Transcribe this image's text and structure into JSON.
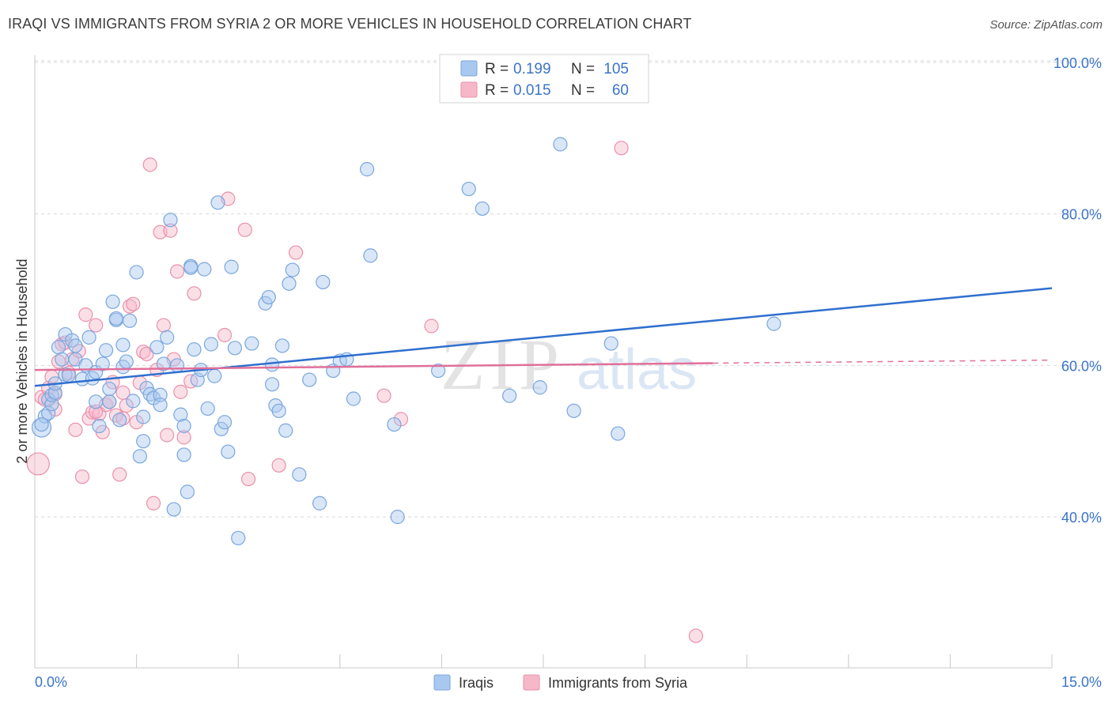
{
  "title": "IRAQI VS IMMIGRANTS FROM SYRIA 2 OR MORE VEHICLES IN HOUSEHOLD CORRELATION CHART",
  "source": "Source: ZipAtlas.com",
  "watermark": {
    "zip": "ZIP",
    "atlas": "atlas"
  },
  "colors": {
    "blue_fill": "#a9c8f0",
    "blue_stroke": "#7aa6dd",
    "blue_line": "#2f6fce",
    "pink_fill": "#f6b8c9",
    "pink_stroke": "#e890aa",
    "pink_line": "#e0709a",
    "tick_text": "#3b74c8",
    "grid": "#d9d9d9"
  },
  "legend": {
    "rows": [
      {
        "r_label": "R =",
        "r_value": "0.199",
        "n_label": "N =",
        "n_value": "105"
      },
      {
        "r_label": "R =",
        "r_value": "0.015",
        "n_label": "N =",
        "n_value": "60"
      }
    ]
  },
  "chart_data": {
    "type": "scatter",
    "title": "IRAQI VS IMMIGRANTS FROM SYRIA 2 OR MORE VEHICLES IN HOUSEHOLD CORRELATION CHART",
    "xlabel": "",
    "ylabel": "2 or more Vehicles in Household",
    "xlim": [
      0,
      15
    ],
    "ylim": [
      20,
      102
    ],
    "x_tick_labels": [
      "0.0%",
      "15.0%"
    ],
    "y_ticks": [
      40,
      60,
      80,
      100
    ],
    "y_tick_labels": [
      "40.0%",
      "60.0%",
      "80.0%",
      "100.0%"
    ],
    "grid": true,
    "legend_position": "top-center",
    "series": [
      {
        "name": "Iraqis",
        "color": "#a9c8f0",
        "trend": {
          "x": [
            0,
            15
          ],
          "y": [
            57.3,
            70.2
          ]
        },
        "points": [
          [
            0.1,
            51.8
          ],
          [
            0.15,
            53.3
          ],
          [
            0.2,
            55.5
          ],
          [
            0.2,
            53.7
          ],
          [
            0.25,
            54.9
          ],
          [
            0.25,
            56.1
          ],
          [
            0.3,
            56.4
          ],
          [
            0.35,
            62.4
          ],
          [
            0.4,
            60.8
          ],
          [
            0.45,
            58.8
          ],
          [
            0.45,
            64.1
          ],
          [
            0.5,
            58.7
          ],
          [
            0.55,
            63.3
          ],
          [
            0.6,
            60.8
          ],
          [
            0.6,
            62.6
          ],
          [
            0.7,
            58.2
          ],
          [
            0.75,
            60.0
          ],
          [
            0.8,
            63.7
          ],
          [
            0.85,
            58.3
          ],
          [
            0.9,
            59.1
          ],
          [
            0.9,
            55.2
          ],
          [
            0.95,
            52.0
          ],
          [
            1.0,
            60.2
          ],
          [
            1.05,
            62.0
          ],
          [
            1.1,
            56.9
          ],
          [
            1.1,
            55.2
          ],
          [
            1.15,
            68.4
          ],
          [
            1.2,
            66.0
          ],
          [
            1.25,
            52.8
          ],
          [
            1.3,
            62.7
          ],
          [
            1.3,
            59.8
          ],
          [
            1.35,
            60.5
          ],
          [
            1.4,
            65.9
          ],
          [
            1.45,
            55.3
          ],
          [
            1.5,
            72.3
          ],
          [
            1.55,
            48.0
          ],
          [
            1.6,
            50.0
          ],
          [
            1.6,
            53.2
          ],
          [
            1.65,
            57.0
          ],
          [
            1.7,
            56.2
          ],
          [
            1.75,
            55.7
          ],
          [
            1.8,
            62.4
          ],
          [
            1.85,
            56.1
          ],
          [
            1.85,
            54.8
          ],
          [
            1.9,
            60.2
          ],
          [
            1.95,
            63.7
          ],
          [
            2.0,
            79.2
          ],
          [
            2.05,
            41.0
          ],
          [
            2.1,
            60.0
          ],
          [
            2.15,
            53.5
          ],
          [
            2.2,
            52.0
          ],
          [
            2.2,
            48.2
          ],
          [
            2.25,
            43.3
          ],
          [
            2.3,
            73.1
          ],
          [
            2.35,
            62.1
          ],
          [
            2.4,
            58.1
          ],
          [
            2.45,
            59.4
          ],
          [
            2.5,
            72.7
          ],
          [
            2.55,
            54.3
          ],
          [
            2.6,
            62.8
          ],
          [
            2.65,
            58.6
          ],
          [
            2.7,
            81.5
          ],
          [
            2.75,
            51.6
          ],
          [
            2.8,
            52.5
          ],
          [
            2.85,
            48.6
          ],
          [
            2.9,
            73.0
          ],
          [
            2.95,
            62.3
          ],
          [
            3.0,
            37.2
          ],
          [
            3.2,
            62.9
          ],
          [
            3.4,
            68.2
          ],
          [
            3.45,
            69.0
          ],
          [
            3.5,
            60.1
          ],
          [
            3.5,
            57.5
          ],
          [
            3.55,
            54.7
          ],
          [
            3.6,
            54.0
          ],
          [
            3.65,
            62.6
          ],
          [
            3.7,
            51.4
          ],
          [
            3.75,
            70.8
          ],
          [
            3.8,
            72.6
          ],
          [
            3.9,
            45.6
          ],
          [
            4.05,
            58.1
          ],
          [
            4.2,
            41.8
          ],
          [
            4.25,
            71.0
          ],
          [
            4.4,
            59.3
          ],
          [
            4.5,
            60.6
          ],
          [
            4.6,
            60.8
          ],
          [
            4.7,
            55.6
          ],
          [
            4.9,
            85.9
          ],
          [
            4.95,
            74.5
          ],
          [
            5.3,
            52.2
          ],
          [
            5.35,
            40.0
          ],
          [
            5.95,
            59.3
          ],
          [
            6.4,
            83.3
          ],
          [
            6.6,
            80.7
          ],
          [
            7.0,
            56.0
          ],
          [
            7.45,
            57.1
          ],
          [
            7.75,
            89.2
          ],
          [
            7.95,
            54.0
          ],
          [
            8.5,
            62.9
          ],
          [
            8.6,
            51.0
          ],
          [
            10.9,
            65.5
          ],
          [
            0.1,
            52.2
          ],
          [
            0.3,
            57.6
          ],
          [
            2.3,
            72.9
          ],
          [
            1.2,
            66.2
          ]
        ]
      },
      {
        "name": "Immigrants from Syria",
        "color": "#f6b8c9",
        "trend": {
          "x": [
            0,
            10
          ],
          "y": [
            59.4,
            60.3
          ]
        },
        "trend_dashed_to": {
          "x": 15,
          "y": 60.7
        },
        "points": [
          [
            0.05,
            47.0
          ],
          [
            0.1,
            55.8
          ],
          [
            0.15,
            55.5
          ],
          [
            0.2,
            57.0
          ],
          [
            0.25,
            58.5
          ],
          [
            0.3,
            56.2
          ],
          [
            0.35,
            60.5
          ],
          [
            0.4,
            62.8
          ],
          [
            0.45,
            63.0
          ],
          [
            0.5,
            59.0
          ],
          [
            0.55,
            60.8
          ],
          [
            0.6,
            51.5
          ],
          [
            0.65,
            61.9
          ],
          [
            0.7,
            45.3
          ],
          [
            0.75,
            66.7
          ],
          [
            0.8,
            53.0
          ],
          [
            0.85,
            53.8
          ],
          [
            0.9,
            65.3
          ],
          [
            0.95,
            53.6
          ],
          [
            1.0,
            51.2
          ],
          [
            1.05,
            54.8
          ],
          [
            1.1,
            55.2
          ],
          [
            1.15,
            57.8
          ],
          [
            1.2,
            53.4
          ],
          [
            1.25,
            45.6
          ],
          [
            1.3,
            56.4
          ],
          [
            1.35,
            54.7
          ],
          [
            1.4,
            67.8
          ],
          [
            1.45,
            68.1
          ],
          [
            1.5,
            52.5
          ],
          [
            1.55,
            57.7
          ],
          [
            1.6,
            61.8
          ],
          [
            1.65,
            61.5
          ],
          [
            1.7,
            86.5
          ],
          [
            1.75,
            41.8
          ],
          [
            1.8,
            59.4
          ],
          [
            1.85,
            77.6
          ],
          [
            1.9,
            65.3
          ],
          [
            1.95,
            50.8
          ],
          [
            2.0,
            77.8
          ],
          [
            2.05,
            60.8
          ],
          [
            2.1,
            72.4
          ],
          [
            2.15,
            56.5
          ],
          [
            2.2,
            50.5
          ],
          [
            2.3,
            57.9
          ],
          [
            2.35,
            69.5
          ],
          [
            2.8,
            64.0
          ],
          [
            2.85,
            82.0
          ],
          [
            3.1,
            77.9
          ],
          [
            3.15,
            45.0
          ],
          [
            3.6,
            46.8
          ],
          [
            3.85,
            74.9
          ],
          [
            5.15,
            56.0
          ],
          [
            5.4,
            52.9
          ],
          [
            5.85,
            65.2
          ],
          [
            8.65,
            88.7
          ],
          [
            9.75,
            24.3
          ],
          [
            0.3,
            54.2
          ],
          [
            0.9,
            53.9
          ],
          [
            1.3,
            53.0
          ]
        ]
      }
    ]
  }
}
